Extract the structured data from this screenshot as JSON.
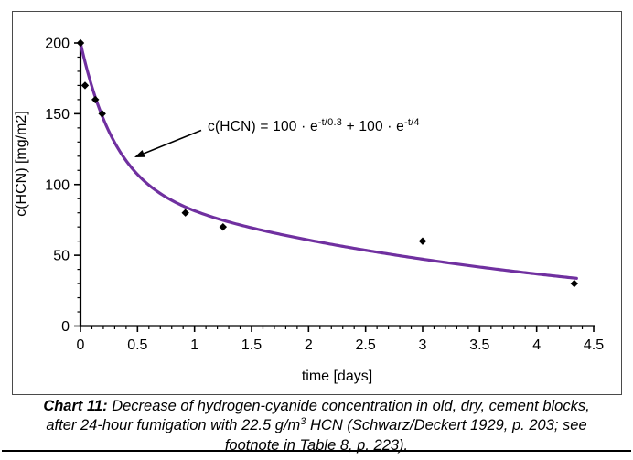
{
  "caption": {
    "line1_bold": "Chart 11:",
    "line1_rest": " Decrease of hydrogen-cyanide concentration in old, dry, cement blocks,",
    "line2_pre": "after 24-hour fumigation with 22.5 g/m",
    "line2_sup": "3",
    "line2_post": " HCN (Schwarz/Deckert 1929, p. 203; see",
    "line3": "footnote in Table 8, p. 223)."
  },
  "chart_data": {
    "type": "scatter",
    "title": "",
    "xlabel": "time [days]",
    "ylabel": "c(HCN) [mg/m2]",
    "xlim": [
      0,
      4.5
    ],
    "ylim": [
      0,
      200
    ],
    "x_major_step": 0.5,
    "x_minor_step": 0.1,
    "y_major_step": 50,
    "y_minor_step": 10,
    "x_tick_labels": [
      "0",
      "0.5",
      "1",
      "1.5",
      "2",
      "2.5",
      "3",
      "3.5",
      "4",
      "4.5"
    ],
    "y_tick_labels": [
      "0",
      "50",
      "100",
      "150",
      "200"
    ],
    "grid": false,
    "legend": null,
    "scatter_points": [
      [
        0,
        200
      ],
      [
        0.04,
        170
      ],
      [
        0.13,
        160
      ],
      [
        0.19,
        150
      ],
      [
        0.92,
        80
      ],
      [
        1.25,
        70
      ],
      [
        3.0,
        60
      ],
      [
        4.33,
        30
      ]
    ],
    "point_color": "#000000",
    "curve": {
      "description": "c(HCN) = 100*e^(-t/0.3) + 100*e^(-t/4)",
      "amp1": 100,
      "tau1": 0.3,
      "amp2": 100,
      "tau2": 4,
      "t_start": 0,
      "t_end": 4.35,
      "color": "#7030A0"
    },
    "annotation": {
      "prefix": "c(HCN) = 100 · e",
      "sup1": "-t/0.3",
      "mid": " + 100 · e",
      "sup2": "-t/4"
    }
  }
}
